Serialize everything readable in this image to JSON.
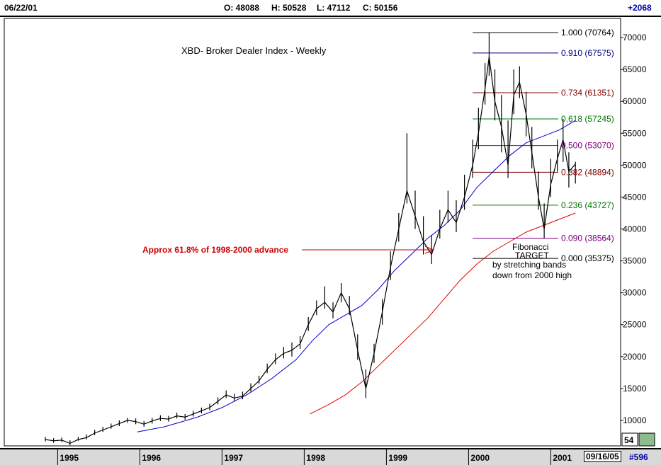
{
  "header": {
    "date": "06/22/01",
    "open": "O: 48088",
    "high": "H: 50528",
    "low": "L: 47112",
    "close": "C: 50156",
    "change": "+2068"
  },
  "footer": {
    "date": "09/16/05",
    "number": "#596",
    "corner_value": "54"
  },
  "colors": {
    "price": "#000000",
    "blue_band": "#0000cc",
    "red_band": "#dd0000",
    "fib_blue": "#000080",
    "fib_dark_red": "#800000",
    "fib_green": "#007700",
    "fib_purple": "#800080",
    "annotation_red": "#cc0000"
  },
  "chart_data": {
    "type": "line",
    "title": "XBD- Broker Dealer Index - Weekly",
    "xlim": [
      1994.35,
      2001.85
    ],
    "ylim": [
      6000,
      73000
    ],
    "x_ticks": [
      {
        "label": "1995",
        "x": 1995.0
      },
      {
        "label": "1996",
        "x": 1996.0
      },
      {
        "label": "1997",
        "x": 1997.0
      },
      {
        "label": "1998",
        "x": 1998.0
      },
      {
        "label": "1999",
        "x": 1999.0
      },
      {
        "label": "2000",
        "x": 2000.0
      },
      {
        "label": "2001",
        "x": 2001.0
      }
    ],
    "y_ticks": [
      10000,
      15000,
      20000,
      25000,
      30000,
      35000,
      40000,
      45000,
      50000,
      55000,
      60000,
      65000,
      70000
    ],
    "series": [
      {
        "name": "",
        "style": "hlc",
        "points": [
          [
            1994.85,
            7000,
            7400,
            6700
          ],
          [
            1994.95,
            6800,
            7200,
            6500
          ],
          [
            1995.05,
            6900,
            7300,
            6600
          ],
          [
            1995.15,
            6400,
            6900,
            6100
          ],
          [
            1995.25,
            7000,
            7400,
            6800
          ],
          [
            1995.35,
            7300,
            7800,
            7000
          ],
          [
            1995.45,
            8000,
            8500,
            7700
          ],
          [
            1995.55,
            8500,
            9000,
            8200
          ],
          [
            1995.65,
            9000,
            9500,
            8700
          ],
          [
            1995.75,
            9500,
            10000,
            9100
          ],
          [
            1995.85,
            10000,
            10400,
            9600
          ],
          [
            1995.95,
            9800,
            10300,
            9400
          ],
          [
            1996.05,
            9400,
            9900,
            9000
          ],
          [
            1996.15,
            9900,
            10400,
            9500
          ],
          [
            1996.25,
            10300,
            10800,
            9900
          ],
          [
            1996.35,
            10200,
            10700,
            9800
          ],
          [
            1996.45,
            10700,
            11200,
            10300
          ],
          [
            1996.55,
            10500,
            11000,
            10100
          ],
          [
            1996.65,
            11000,
            11500,
            10600
          ],
          [
            1996.75,
            11500,
            12000,
            11100
          ],
          [
            1996.85,
            12000,
            12600,
            11600
          ],
          [
            1996.95,
            13000,
            13600,
            12500
          ],
          [
            1997.05,
            14000,
            14700,
            13500
          ],
          [
            1997.15,
            13500,
            14200,
            13000
          ],
          [
            1997.25,
            13800,
            14500,
            13300
          ],
          [
            1997.35,
            15000,
            15800,
            14500
          ],
          [
            1997.45,
            16200,
            17000,
            15700
          ],
          [
            1997.55,
            18000,
            18900,
            17400
          ],
          [
            1997.65,
            19500,
            20500,
            18800
          ],
          [
            1997.75,
            20500,
            21500,
            19700
          ],
          [
            1997.85,
            21000,
            22200,
            20000
          ],
          [
            1997.95,
            22000,
            23200,
            21200
          ],
          [
            1998.05,
            25000,
            26200,
            24000
          ],
          [
            1998.15,
            27500,
            28800,
            26500
          ],
          [
            1998.25,
            28500,
            31000,
            27500
          ],
          [
            1998.35,
            27000,
            28500,
            26000
          ],
          [
            1998.45,
            30000,
            31500,
            28500
          ],
          [
            1998.55,
            27500,
            29500,
            26500
          ],
          [
            1998.65,
            21000,
            23500,
            19500
          ],
          [
            1998.75,
            15000,
            18000,
            13500
          ],
          [
            1998.85,
            20500,
            22000,
            19000
          ],
          [
            1998.95,
            27000,
            29000,
            25000
          ],
          [
            1999.05,
            34000,
            36500,
            32000
          ],
          [
            1999.15,
            40000,
            42500,
            38000
          ],
          [
            1999.25,
            46000,
            55000,
            44000
          ],
          [
            1999.35,
            42000,
            46000,
            40000
          ],
          [
            1999.45,
            38000,
            42000,
            36000
          ],
          [
            1999.55,
            36000,
            39000,
            34500
          ],
          [
            1999.65,
            40000,
            43000,
            38500
          ],
          [
            1999.75,
            43000,
            46000,
            41000
          ],
          [
            1999.85,
            41000,
            44500,
            39500
          ],
          [
            1999.95,
            45000,
            48500,
            43000
          ],
          [
            2000.05,
            50000,
            54000,
            48000
          ],
          [
            2000.12,
            55000,
            59000,
            52500
          ],
          [
            2000.2,
            62000,
            66000,
            59500
          ],
          [
            2000.25,
            67000,
            70764,
            64000
          ],
          [
            2000.32,
            60000,
            65000,
            57000
          ],
          [
            2000.4,
            56000,
            61000,
            52000
          ],
          [
            2000.48,
            50000,
            57000,
            48000
          ],
          [
            2000.55,
            61000,
            65000,
            58000
          ],
          [
            2000.62,
            63000,
            65500,
            60500
          ],
          [
            2000.7,
            58000,
            61500,
            54500
          ],
          [
            2000.77,
            52000,
            56000,
            49500
          ],
          [
            2000.85,
            45000,
            49000,
            43000
          ],
          [
            2000.92,
            40000,
            44000,
            38564
          ],
          [
            2001.0,
            47000,
            51000,
            45000
          ],
          [
            2001.08,
            51000,
            54000,
            49000
          ],
          [
            2001.15,
            54000,
            57245,
            50500
          ],
          [
            2001.22,
            49000,
            52000,
            46500
          ],
          [
            2001.3,
            50156,
            50528,
            47112
          ]
        ]
      },
      {
        "name": "",
        "color": "#0000cc",
        "values": [
          [
            1995.97,
            8200
          ],
          [
            1996.3,
            9000
          ],
          [
            1996.7,
            10500
          ],
          [
            1997.0,
            12000
          ],
          [
            1997.3,
            14000
          ],
          [
            1997.6,
            16500
          ],
          [
            1997.9,
            19500
          ],
          [
            1998.1,
            22500
          ],
          [
            1998.3,
            25000
          ],
          [
            1998.5,
            26500
          ],
          [
            1998.7,
            28000
          ],
          [
            1998.9,
            30500
          ],
          [
            1999.1,
            33500
          ],
          [
            1999.3,
            36000
          ],
          [
            1999.5,
            38500
          ],
          [
            1999.7,
            40500
          ],
          [
            1999.9,
            43000
          ],
          [
            2000.1,
            46500
          ],
          [
            2000.3,
            49000
          ],
          [
            2000.5,
            51500
          ],
          [
            2000.7,
            53500
          ],
          [
            2000.9,
            54500
          ],
          [
            2001.1,
            55500
          ],
          [
            2001.3,
            57000
          ]
        ]
      },
      {
        "name": "",
        "color": "#dd0000",
        "values": [
          [
            1998.07,
            11000
          ],
          [
            1998.3,
            12500
          ],
          [
            1998.5,
            14000
          ],
          [
            1998.7,
            16000
          ],
          [
            1998.9,
            18500
          ],
          [
            1999.1,
            21000
          ],
          [
            1999.3,
            23500
          ],
          [
            1999.5,
            26000
          ],
          [
            1999.7,
            29000
          ],
          [
            1999.9,
            32000
          ],
          [
            2000.1,
            34500
          ],
          [
            2000.3,
            36500
          ],
          [
            2000.5,
            38000
          ],
          [
            2000.7,
            39500
          ],
          [
            2000.9,
            40500
          ],
          [
            2001.1,
            41500
          ],
          [
            2001.3,
            42500
          ]
        ]
      }
    ],
    "fibonacci_levels": [
      {
        "label": "1.000 (70764)",
        "value": 70764,
        "color": "#000000"
      },
      {
        "label": "0.910 (67575)",
        "value": 67575,
        "color": "#000080"
      },
      {
        "label": "0.734 (61351)",
        "value": 61351,
        "color": "#800000"
      },
      {
        "label": "0.618 (57245)",
        "value": 57245,
        "color": "#007700"
      },
      {
        "label": "0.500 (53070)",
        "value": 53070,
        "color": "#800080"
      },
      {
        "label": "0.382 (48894)",
        "value": 48894,
        "color": "#800000"
      },
      {
        "label": "0.236 (43727)",
        "value": 43727,
        "color": "#007700"
      },
      {
        "label": "0.090 (38564)",
        "value": 38564,
        "color": "#800080"
      },
      {
        "label": "0.000 (35375)",
        "value": 35375,
        "color": "#000000"
      }
    ],
    "annotations": {
      "advance_note": "Approx 61.8% of 1998-2000 advance",
      "target_title": "Fibonacci",
      "target_sub": "TARGET",
      "target_line1": "by stretching bands",
      "target_line2": "down from 2000 high"
    }
  }
}
